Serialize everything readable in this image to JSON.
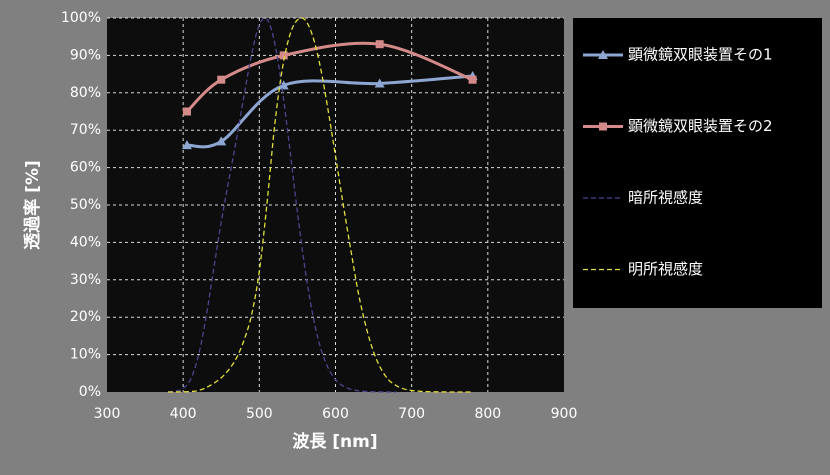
{
  "chart_data": {
    "type": "line",
    "xlabel": "波長 [nm]",
    "ylabel": "透過率 [%]",
    "xlim": [
      300,
      900
    ],
    "xticks": [
      300,
      400,
      500,
      600,
      700,
      800,
      900
    ],
    "ylim": [
      0,
      100
    ],
    "yticks": [
      {
        "value": 0,
        "label": "0%"
      },
      {
        "value": 10,
        "label": "10%"
      },
      {
        "value": 20,
        "label": "20%"
      },
      {
        "value": 30,
        "label": "30%"
      },
      {
        "value": 40,
        "label": "40%"
      },
      {
        "value": 50,
        "label": "50%"
      },
      {
        "value": 60,
        "label": "60%"
      },
      {
        "value": 70,
        "label": "70%"
      },
      {
        "value": 80,
        "label": "80%"
      },
      {
        "value": 90,
        "label": "90%"
      },
      {
        "value": 100,
        "label": "100%"
      }
    ],
    "grid": true,
    "grid_style": "dashed",
    "legend": "right",
    "series": [
      {
        "name": "顕微鏡双眼装置その1",
        "color": "#8ea6d2",
        "marker": "triangle",
        "dash": false,
        "x": [
          405,
          450,
          532,
          658,
          780
        ],
        "values": [
          66,
          67,
          82,
          82.5,
          84.5
        ]
      },
      {
        "name": "顕微鏡双眼装置その2",
        "color": "#d38a88",
        "marker": "square",
        "dash": false,
        "x": [
          405,
          450,
          532,
          658,
          780
        ],
        "values": [
          75,
          83.5,
          90,
          93,
          83.5
        ]
      },
      {
        "name": "暗所視感度",
        "color": "#4a4690",
        "marker": "none",
        "dash": true,
        "x": [
          380,
          390,
          400,
          410,
          420,
          430,
          440,
          450,
          460,
          470,
          480,
          490,
          500,
          510,
          520,
          530,
          540,
          550,
          560,
          570,
          580,
          590,
          600,
          610,
          620,
          630,
          640,
          650,
          660,
          670,
          680
        ],
        "values": [
          0.06,
          0.22,
          0.93,
          3.5,
          9.7,
          20,
          32.8,
          45.5,
          56.7,
          67.6,
          79.3,
          90.4,
          98.2,
          99.7,
          93.5,
          81.1,
          65,
          48.1,
          32.9,
          20.8,
          12.1,
          6.6,
          3.3,
          1.6,
          0.74,
          0.33,
          0.15,
          0.07,
          0.03,
          0.01,
          0.01
        ]
      },
      {
        "name": "明所視感度",
        "color": "#e2de3a",
        "marker": "none",
        "dash": true,
        "x": [
          380,
          390,
          400,
          410,
          420,
          430,
          440,
          450,
          460,
          470,
          480,
          490,
          500,
          510,
          520,
          530,
          540,
          550,
          560,
          570,
          580,
          590,
          600,
          610,
          620,
          630,
          640,
          650,
          660,
          670,
          680,
          690,
          700,
          710,
          720,
          730,
          740,
          750,
          760,
          770,
          780
        ],
        "values": [
          0.004,
          0.012,
          0.04,
          0.12,
          0.4,
          1.16,
          2.3,
          3.8,
          6,
          9.1,
          13.9,
          20.8,
          32.3,
          50.3,
          71,
          86.2,
          95.4,
          99.5,
          99.5,
          95.2,
          87,
          75.7,
          63.1,
          50.3,
          38.1,
          26.5,
          17.5,
          10.7,
          6.1,
          3.2,
          1.7,
          0.82,
          0.41,
          0.21,
          0.1,
          0.05,
          0.03,
          0.01,
          0.006,
          0.003,
          0.002
        ]
      }
    ]
  }
}
